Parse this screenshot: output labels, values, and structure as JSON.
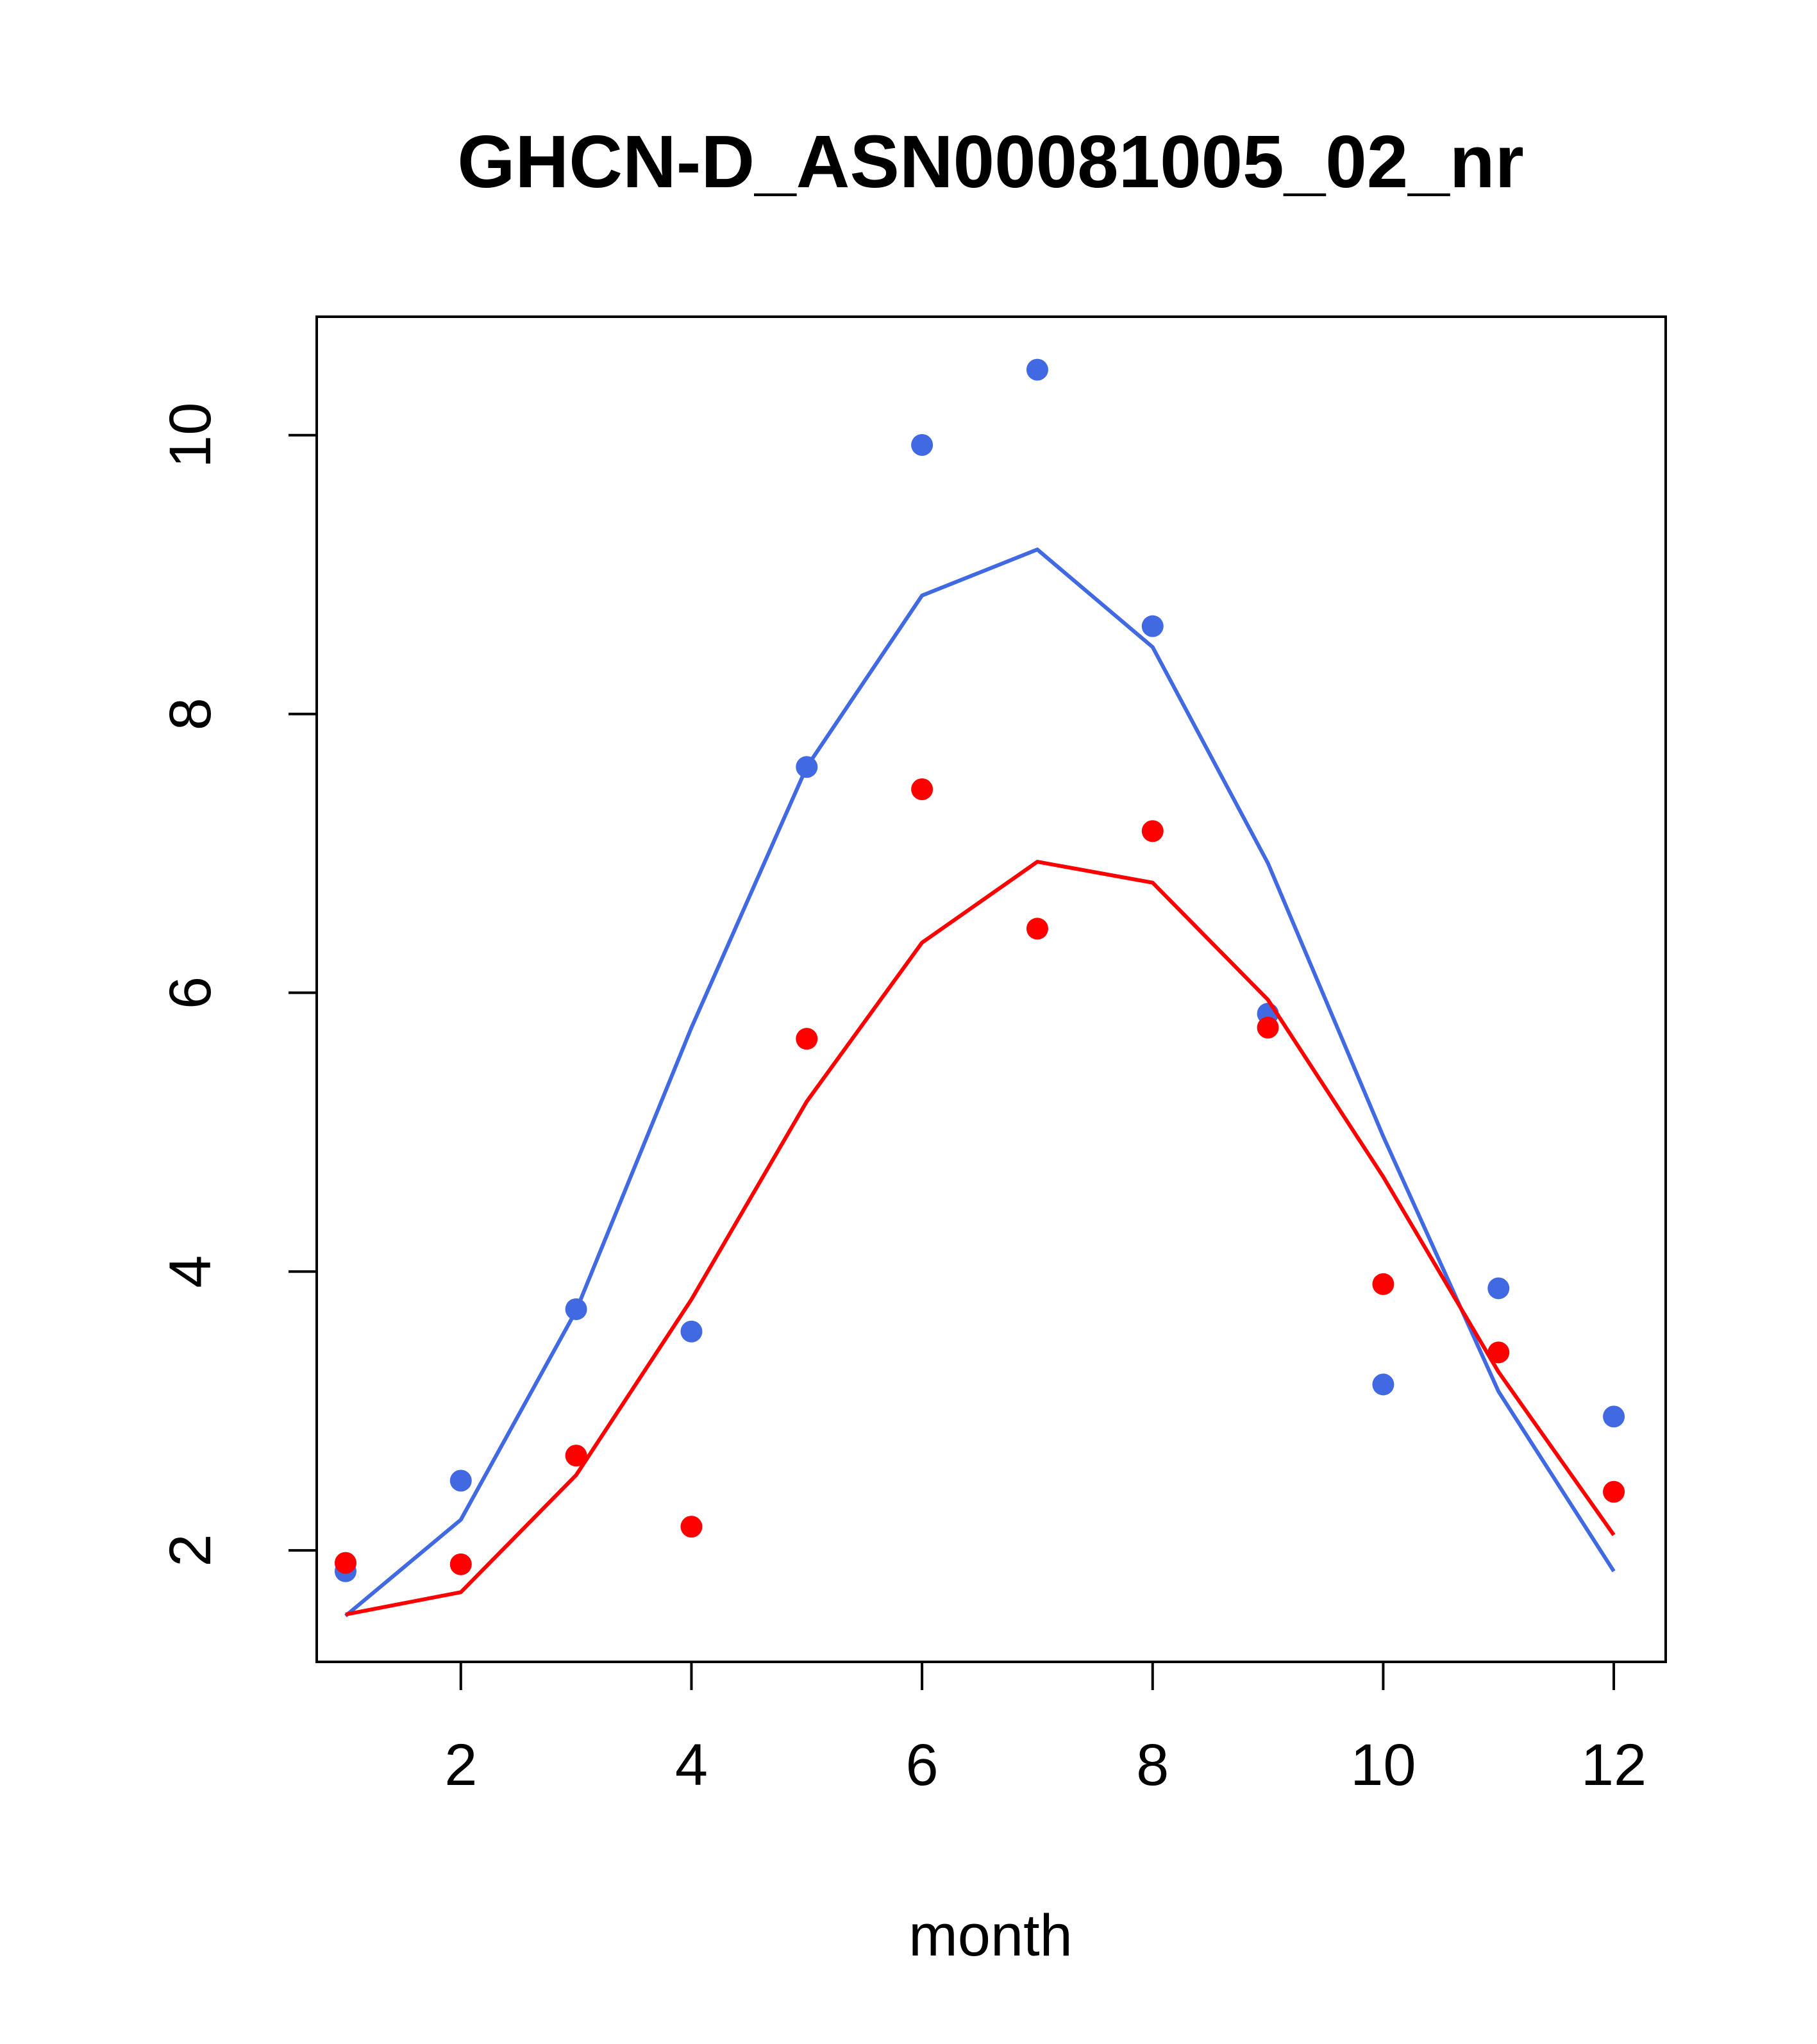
{
  "chart_data": {
    "type": "scatter",
    "title": "GHCN-D_ASN00081005_02_nr",
    "xlabel": "month",
    "ylabel": "",
    "xlim": [
      0.75,
      12.45
    ],
    "ylim": [
      1.2,
      10.85
    ],
    "x_ticks": [
      2,
      4,
      6,
      8,
      10,
      12
    ],
    "y_ticks": [
      2,
      4,
      6,
      8,
      10
    ],
    "x_tick_labels": [
      "2",
      "4",
      "6",
      "8",
      "10",
      "12"
    ],
    "y_tick_labels": [
      "2",
      "4",
      "6",
      "8",
      "10"
    ],
    "grid": false,
    "legend": "none",
    "x": [
      1,
      2,
      3,
      4,
      5,
      6,
      7,
      8,
      9,
      10,
      11,
      12
    ],
    "series": [
      {
        "color": "#4169E1",
        "points": [
          1.85,
          2.5,
          3.73,
          3.57,
          7.62,
          9.93,
          10.47,
          8.63,
          5.85,
          3.19,
          3.88,
          2.96
        ],
        "line": [
          1.53,
          2.22,
          3.72,
          5.75,
          7.62,
          8.85,
          9.18,
          8.48,
          6.93,
          4.97,
          3.14,
          1.85
        ]
      },
      {
        "color": "#FF0000",
        "points": [
          1.91,
          1.9,
          2.68,
          2.17,
          5.67,
          7.46,
          6.46,
          7.16,
          5.75,
          3.91,
          3.42,
          2.42
        ],
        "line": [
          1.54,
          1.7,
          2.54,
          3.8,
          5.22,
          6.36,
          6.94,
          6.79,
          5.95,
          4.68,
          3.28,
          2.11
        ]
      }
    ]
  }
}
